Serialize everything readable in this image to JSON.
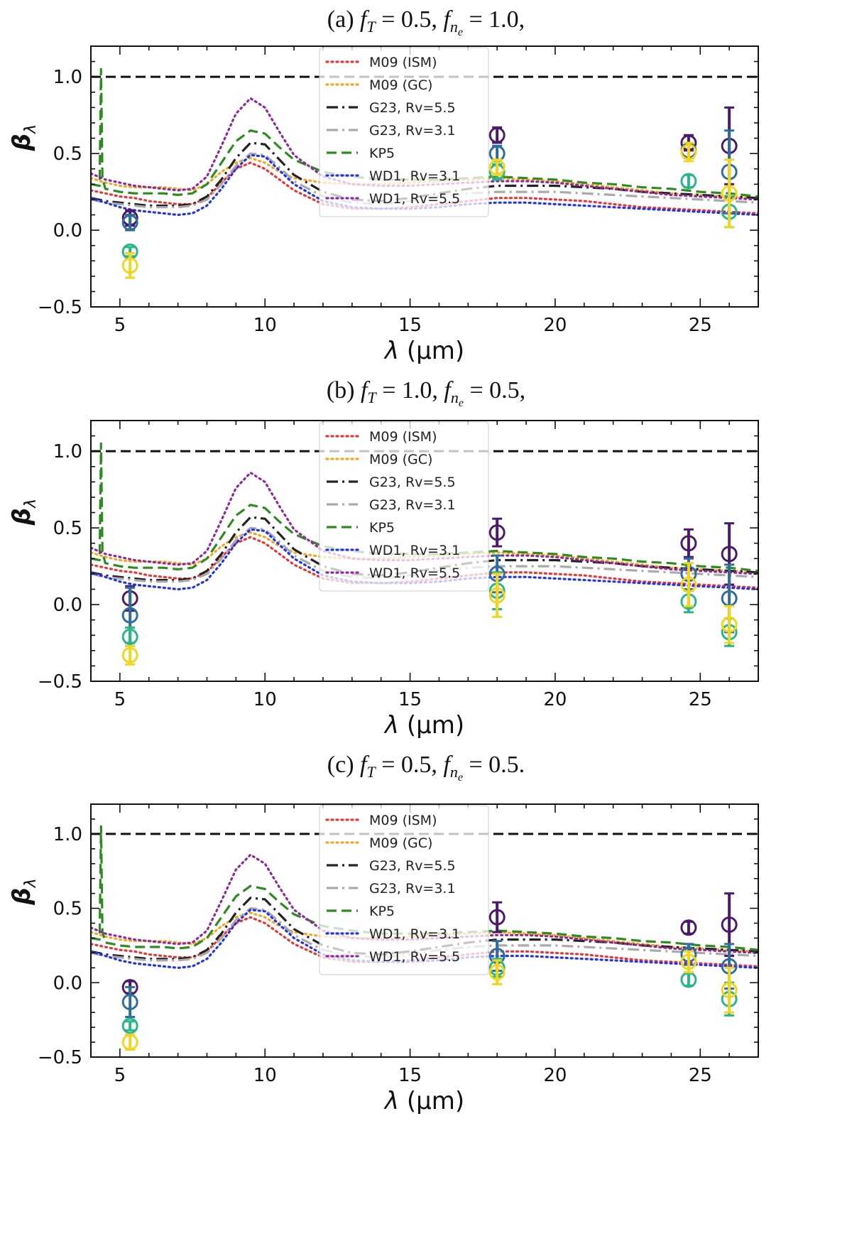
{
  "chart_data": [
    {
      "type": "line",
      "title_parts": [
        "(a) ",
        "f",
        "T",
        " = 0.5, ",
        "f",
        "n",
        "e",
        " = 1.0,"
      ],
      "xlabel_parts": [
        "λ",
        " (μm)"
      ],
      "ylabel_parts": [
        "β",
        "λ"
      ],
      "xlim": [
        4,
        27
      ],
      "ylim": [
        -0.5,
        1.2
      ],
      "xticks": [
        5,
        10,
        15,
        20,
        25
      ],
      "yticks": [
        -0.5,
        0.0,
        0.5,
        1.0
      ],
      "xtick_labels": [
        "5",
        "10",
        "15",
        "20",
        "25"
      ],
      "ytick_labels": [
        "−0.5",
        "0.0",
        "0.5",
        "1.0"
      ],
      "legend_position": "upper-center",
      "reference_line": {
        "y": 1.0,
        "style": "black-dashed"
      },
      "points": [
        {
          "x": 5.35,
          "y": 0.08,
          "err": 0.05,
          "group": "dark-purple"
        },
        {
          "x": 5.35,
          "y": 0.05,
          "err": 0.05,
          "group": "blue"
        },
        {
          "x": 5.35,
          "y": -0.14,
          "err": 0.03,
          "group": "teal-green"
        },
        {
          "x": 5.35,
          "y": -0.23,
          "err": 0.08,
          "group": "yellow"
        },
        {
          "x": 18.0,
          "y": 0.62,
          "err": 0.05,
          "group": "dark-purple"
        },
        {
          "x": 18.0,
          "y": 0.5,
          "err": 0.05,
          "group": "blue"
        },
        {
          "x": 18.0,
          "y": 0.38,
          "err": 0.05,
          "group": "teal-green"
        },
        {
          "x": 18.0,
          "y": 0.41,
          "err": 0.05,
          "group": "yellow"
        },
        {
          "x": 24.6,
          "y": 0.57,
          "err": 0.05,
          "group": "dark-purple"
        },
        {
          "x": 24.6,
          "y": 0.52,
          "err": 0.05,
          "group": "blue"
        },
        {
          "x": 24.6,
          "y": 0.32,
          "err": 0.04,
          "group": "teal-green"
        },
        {
          "x": 24.6,
          "y": 0.51,
          "err": 0.06,
          "group": "yellow"
        },
        {
          "x": 26.0,
          "y": 0.55,
          "err": 0.25,
          "group": "dark-purple"
        },
        {
          "x": 26.0,
          "y": 0.38,
          "err": 0.27,
          "group": "blue"
        },
        {
          "x": 26.0,
          "y": 0.12,
          "err": 0.1,
          "group": "teal-green"
        },
        {
          "x": 26.0,
          "y": 0.24,
          "err": 0.22,
          "group": "yellow"
        }
      ]
    },
    {
      "type": "line",
      "title_parts": [
        "(b) ",
        "f",
        "T",
        " = 1.0, ",
        "f",
        "n",
        "e",
        " = 0.5,"
      ],
      "xlabel_parts": [
        "λ",
        " (μm)"
      ],
      "ylabel_parts": [
        "β",
        "λ"
      ],
      "xlim": [
        4,
        27
      ],
      "ylim": [
        -0.5,
        1.2
      ],
      "xticks": [
        5,
        10,
        15,
        20,
        25
      ],
      "yticks": [
        -0.5,
        0.0,
        0.5,
        1.0
      ],
      "xtick_labels": [
        "5",
        "10",
        "15",
        "20",
        "25"
      ],
      "ytick_labels": [
        "−0.5",
        "0.0",
        "0.5",
        "1.0"
      ],
      "legend_position": "upper-center",
      "reference_line": {
        "y": 1.0,
        "style": "black-dashed"
      },
      "points": [
        {
          "x": 5.35,
          "y": 0.04,
          "err": 0.08,
          "group": "dark-purple"
        },
        {
          "x": 5.35,
          "y": -0.07,
          "err": 0.18,
          "group": "blue"
        },
        {
          "x": 5.35,
          "y": -0.21,
          "err": 0.06,
          "group": "teal-green"
        },
        {
          "x": 5.35,
          "y": -0.33,
          "err": 0.06,
          "group": "yellow"
        },
        {
          "x": 18.0,
          "y": 0.47,
          "err": 0.09,
          "group": "dark-purple"
        },
        {
          "x": 18.0,
          "y": 0.2,
          "err": 0.12,
          "group": "blue"
        },
        {
          "x": 18.0,
          "y": 0.09,
          "err": 0.12,
          "group": "teal-green"
        },
        {
          "x": 18.0,
          "y": 0.06,
          "err": 0.14,
          "group": "yellow"
        },
        {
          "x": 24.6,
          "y": 0.4,
          "err": 0.09,
          "group": "dark-purple"
        },
        {
          "x": 24.6,
          "y": 0.2,
          "err": 0.1,
          "group": "blue"
        },
        {
          "x": 24.6,
          "y": 0.02,
          "err": 0.07,
          "group": "teal-green"
        },
        {
          "x": 24.6,
          "y": 0.13,
          "err": 0.14,
          "group": "yellow"
        },
        {
          "x": 26.0,
          "y": 0.33,
          "err": 0.2,
          "group": "dark-purple"
        },
        {
          "x": 26.0,
          "y": 0.04,
          "err": 0.22,
          "group": "blue"
        },
        {
          "x": 26.0,
          "y": -0.18,
          "err": 0.09,
          "group": "teal-green"
        },
        {
          "x": 26.0,
          "y": -0.13,
          "err": 0.12,
          "group": "yellow"
        }
      ]
    },
    {
      "type": "line",
      "title_parts": [
        "(c) ",
        "f",
        "T",
        " = 0.5, ",
        "f",
        "n",
        "e",
        " = 0.5."
      ],
      "xlabel_parts": [
        "λ",
        " (μm)"
      ],
      "ylabel_parts": [
        "β",
        "λ"
      ],
      "xlim": [
        4,
        27
      ],
      "ylim": [
        -0.5,
        1.2
      ],
      "xticks": [
        5,
        10,
        15,
        20,
        25
      ],
      "yticks": [
        -0.5,
        0.0,
        0.5,
        1.0
      ],
      "xtick_labels": [
        "5",
        "10",
        "15",
        "20",
        "25"
      ],
      "ytick_labels": [
        "−0.5",
        "0.0",
        "0.5",
        "1.0"
      ],
      "legend_position": "upper-center",
      "reference_line": {
        "y": 1.0,
        "style": "black-dashed"
      },
      "points": [
        {
          "x": 5.35,
          "y": -0.03,
          "err": 0.04,
          "group": "dark-purple"
        },
        {
          "x": 5.35,
          "y": -0.13,
          "err": 0.1,
          "group": "blue"
        },
        {
          "x": 5.35,
          "y": -0.29,
          "err": 0.03,
          "group": "teal-green"
        },
        {
          "x": 5.35,
          "y": -0.4,
          "err": 0.05,
          "group": "yellow"
        },
        {
          "x": 18.0,
          "y": 0.44,
          "err": 0.1,
          "group": "dark-purple"
        },
        {
          "x": 18.0,
          "y": 0.18,
          "err": 0.1,
          "group": "blue"
        },
        {
          "x": 18.0,
          "y": 0.1,
          "err": 0.06,
          "group": "teal-green"
        },
        {
          "x": 18.0,
          "y": 0.07,
          "err": 0.08,
          "group": "yellow"
        },
        {
          "x": 24.6,
          "y": 0.37,
          "err": 0.04,
          "group": "dark-purple"
        },
        {
          "x": 24.6,
          "y": 0.19,
          "err": 0.07,
          "group": "blue"
        },
        {
          "x": 24.6,
          "y": 0.02,
          "err": 0.04,
          "group": "teal-green"
        },
        {
          "x": 24.6,
          "y": 0.14,
          "err": 0.07,
          "group": "yellow"
        },
        {
          "x": 26.0,
          "y": 0.39,
          "err": 0.21,
          "group": "dark-purple"
        },
        {
          "x": 26.0,
          "y": 0.11,
          "err": 0.15,
          "group": "blue"
        },
        {
          "x": 26.0,
          "y": -0.11,
          "err": 0.11,
          "group": "teal-green"
        },
        {
          "x": 26.0,
          "y": -0.05,
          "err": 0.15,
          "group": "yellow"
        }
      ]
    }
  ],
  "series": [
    {
      "name": "M09 (ISM)",
      "color": "#ee3333",
      "style": "dotted",
      "x": [
        4.0,
        4.5,
        5.0,
        5.5,
        6.0,
        6.5,
        7.0,
        7.5,
        8.0,
        8.5,
        9.0,
        9.5,
        10.0,
        10.5,
        11.0,
        12.0,
        13.0,
        14.0,
        15.0,
        16.0,
        17.0,
        18.0,
        19.0,
        20.0,
        21.0,
        22.0,
        23.0,
        24.0,
        25.0,
        26.0,
        27.0
      ],
      "y": [
        0.26,
        0.24,
        0.22,
        0.21,
        0.19,
        0.18,
        0.17,
        0.17,
        0.21,
        0.31,
        0.4,
        0.44,
        0.4,
        0.33,
        0.26,
        0.17,
        0.14,
        0.14,
        0.15,
        0.17,
        0.19,
        0.21,
        0.21,
        0.2,
        0.19,
        0.17,
        0.15,
        0.14,
        0.13,
        0.12,
        0.11
      ]
    },
    {
      "name": "M09 (GC)",
      "color": "#f5a623",
      "style": "dotted",
      "x": [
        4.0,
        4.5,
        5.0,
        5.5,
        6.0,
        6.5,
        7.0,
        7.5,
        8.0,
        8.5,
        9.0,
        9.5,
        10.0,
        10.5,
        11.0,
        12.0,
        13.0,
        14.0,
        15.0,
        16.0,
        17.0,
        18.0,
        19.0,
        20.0,
        21.0,
        22.0,
        23.0,
        24.0,
        25.0,
        26.0,
        27.0
      ],
      "y": [
        0.34,
        0.31,
        0.29,
        0.28,
        0.28,
        0.28,
        0.27,
        0.26,
        0.3,
        0.38,
        0.44,
        0.47,
        0.44,
        0.38,
        0.34,
        0.31,
        0.3,
        0.3,
        0.31,
        0.32,
        0.33,
        0.34,
        0.33,
        0.32,
        0.3,
        0.28,
        0.26,
        0.24,
        0.23,
        0.22,
        0.21
      ]
    },
    {
      "name": "G23, Rv=5.5",
      "color": "#222222",
      "style": "dashdot",
      "x": [
        4.0,
        4.5,
        5.0,
        5.5,
        6.0,
        6.5,
        7.0,
        7.5,
        8.0,
        8.5,
        9.0,
        9.5,
        10.0,
        10.5,
        11.0,
        12.0,
        13.0,
        14.0,
        15.0,
        16.0,
        17.0,
        18.0,
        19.0,
        20.0,
        21.0,
        22.0,
        23.0,
        24.0,
        25.0,
        26.0,
        27.0
      ],
      "y": [
        0.21,
        0.19,
        0.18,
        0.17,
        0.16,
        0.16,
        0.16,
        0.17,
        0.22,
        0.33,
        0.47,
        0.57,
        0.56,
        0.46,
        0.36,
        0.25,
        0.2,
        0.19,
        0.21,
        0.24,
        0.27,
        0.29,
        0.29,
        0.29,
        0.28,
        0.27,
        0.25,
        0.24,
        0.23,
        0.22,
        0.21
      ]
    },
    {
      "name": "G23, Rv=3.1",
      "color": "#aaaaaa",
      "style": "dashdot",
      "x": [
        4.0,
        4.5,
        5.0,
        5.5,
        6.0,
        6.5,
        7.0,
        7.5,
        8.0,
        8.5,
        9.0,
        9.5,
        10.0,
        10.5,
        11.0,
        12.0,
        13.0,
        14.0,
        15.0,
        16.0,
        17.0,
        18.0,
        19.0,
        20.0,
        21.0,
        22.0,
        23.0,
        24.0,
        25.0,
        26.0,
        27.0
      ],
      "y": [
        0.2,
        0.18,
        0.17,
        0.16,
        0.15,
        0.15,
        0.15,
        0.16,
        0.2,
        0.3,
        0.42,
        0.5,
        0.49,
        0.41,
        0.32,
        0.22,
        0.18,
        0.17,
        0.19,
        0.22,
        0.24,
        0.25,
        0.25,
        0.25,
        0.24,
        0.23,
        0.22,
        0.21,
        0.2,
        0.19,
        0.18
      ]
    },
    {
      "name": "KP5",
      "color": "#2e8b22",
      "style": "dashed",
      "x": [
        4.0,
        4.3,
        4.35,
        4.4,
        4.5,
        5.0,
        5.5,
        6.0,
        6.5,
        7.0,
        7.5,
        8.0,
        8.5,
        9.0,
        9.5,
        10.0,
        10.5,
        11.0,
        12.0,
        13.0,
        14.0,
        15.0,
        16.0,
        17.0,
        18.0,
        19.0,
        20.0,
        21.0,
        22.0,
        23.0,
        24.0,
        25.0,
        26.0,
        27.0
      ],
      "y": [
        0.3,
        0.29,
        1.05,
        0.34,
        0.27,
        0.25,
        0.24,
        0.24,
        0.24,
        0.23,
        0.24,
        0.3,
        0.44,
        0.58,
        0.65,
        0.63,
        0.54,
        0.46,
        0.38,
        0.35,
        0.33,
        0.33,
        0.33,
        0.34,
        0.35,
        0.34,
        0.33,
        0.31,
        0.3,
        0.28,
        0.27,
        0.25,
        0.24,
        0.22
      ]
    },
    {
      "name": "WD1, Rv=3.1",
      "color": "#2233ee",
      "style": "dotted",
      "x": [
        4.0,
        4.5,
        5.0,
        5.5,
        6.0,
        6.5,
        7.0,
        7.5,
        8.0,
        8.5,
        9.0,
        9.5,
        10.0,
        10.5,
        11.0,
        12.0,
        13.0,
        14.0,
        15.0,
        16.0,
        17.0,
        18.0,
        19.0,
        20.0,
        21.0,
        22.0,
        23.0,
        24.0,
        25.0,
        26.0,
        27.0
      ],
      "y": [
        0.21,
        0.18,
        0.15,
        0.13,
        0.12,
        0.11,
        0.1,
        0.11,
        0.16,
        0.27,
        0.4,
        0.49,
        0.48,
        0.39,
        0.3,
        0.19,
        0.15,
        0.14,
        0.14,
        0.15,
        0.17,
        0.18,
        0.18,
        0.17,
        0.16,
        0.15,
        0.14,
        0.13,
        0.12,
        0.11,
        0.1
      ]
    },
    {
      "name": "WD1, Rv=5.5",
      "color": "#8e2a9e",
      "style": "dotted",
      "x": [
        4.0,
        4.5,
        5.0,
        5.5,
        6.0,
        6.5,
        7.0,
        7.5,
        8.0,
        8.5,
        9.0,
        9.5,
        10.0,
        10.5,
        11.0,
        12.0,
        13.0,
        14.0,
        15.0,
        16.0,
        17.0,
        18.0,
        19.0,
        20.0,
        21.0,
        22.0,
        23.0,
        24.0,
        25.0,
        26.0,
        27.0
      ],
      "y": [
        0.37,
        0.33,
        0.31,
        0.29,
        0.28,
        0.27,
        0.26,
        0.27,
        0.35,
        0.55,
        0.76,
        0.86,
        0.8,
        0.64,
        0.49,
        0.35,
        0.3,
        0.29,
        0.29,
        0.3,
        0.31,
        0.32,
        0.32,
        0.31,
        0.29,
        0.27,
        0.25,
        0.23,
        0.22,
        0.21,
        0.2
      ]
    }
  ],
  "point_colors": {
    "dark-purple": "#4b1a6b",
    "blue": "#2f6e9a",
    "teal-green": "#2bb588",
    "yellow": "#f2d51f"
  }
}
